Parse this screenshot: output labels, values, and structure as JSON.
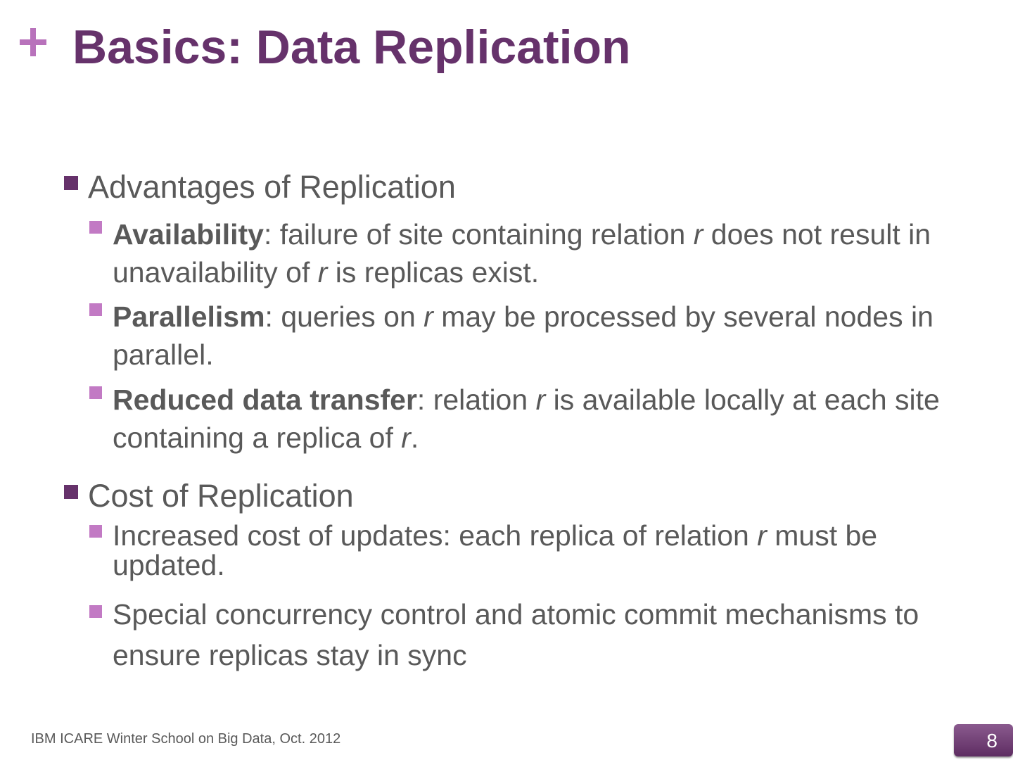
{
  "slide": {
    "title": "Basics: Data Replication",
    "colors": {
      "title": "#66326b",
      "accent": "#b872bb",
      "bullet_level1": "#66326b",
      "bullet_level2": "#c27ac4",
      "text": "#595959"
    },
    "sections": [
      {
        "heading": "Advantages of Replication",
        "items": [
          {
            "bold": "Availability",
            "p1": ": failure of site containing relation ",
            "i1": "r",
            "p2": " does not result in unavailability of ",
            "i2": "r",
            "p3": " is replicas exist."
          },
          {
            "bold": "Parallelism",
            "p1": ": queries on ",
            "i1": "r",
            "p2": " may be processed by several nodes in parallel."
          },
          {
            "bold": "Reduced data transfer",
            "p1": ": relation ",
            "i1": "r",
            "p2": " is available locally at each site containing a replica of ",
            "i2": "r",
            "p3": "."
          }
        ]
      },
      {
        "heading": "Cost of Replication",
        "items": [
          {
            "p1": "Increased cost of updates: each replica of relation ",
            "i1": "r",
            "p2": " must be updated."
          },
          {
            "p1": "Special concurrency control and atomic commit mechanisms to ensure replicas stay in sync"
          }
        ]
      }
    ]
  },
  "footer": {
    "text": "IBM ICARE Winter School on Big Data, Oct. 2012",
    "page_number": "8"
  }
}
